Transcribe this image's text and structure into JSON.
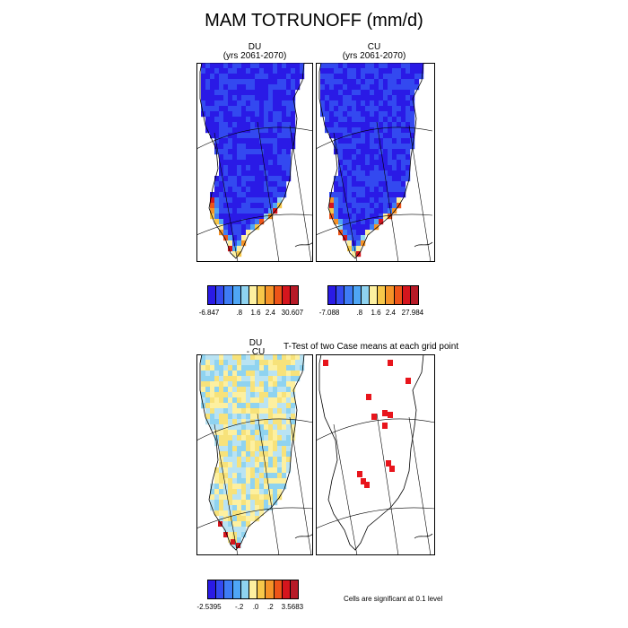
{
  "title": "MAM TOTRUNOFF (mm/d)",
  "panels": {
    "du": {
      "name": "DU",
      "years": "(yrs 2061-2070)"
    },
    "cu": {
      "name": "CU",
      "years": "(yrs 2061-2070)"
    },
    "diff": {
      "line1": "DU",
      "line2": "- CU"
    },
    "ttest": {
      "title": "T-Test of two Case means at each grid point"
    }
  },
  "colorbars": {
    "du": {
      "colors": [
        "#2a1ae6",
        "#3349f0",
        "#3e7cf5",
        "#4fa6f5",
        "#8fd3f0",
        "#fdf0a0",
        "#f7c84a",
        "#f59328",
        "#ee5418",
        "#d5151d",
        "#b71a27"
      ],
      "ticks": [
        "-6.847",
        ".8",
        "1.6",
        "2.4",
        "30.607"
      ]
    },
    "cu": {
      "colors": [
        "#2a1ae6",
        "#3349f0",
        "#3e7cf5",
        "#4fa6f5",
        "#8fd3f0",
        "#fdf0a0",
        "#f7c84a",
        "#f59328",
        "#ee5418",
        "#d5151d",
        "#b71a27"
      ],
      "ticks": [
        "-7.088",
        ".8",
        "1.6",
        "2.4",
        "27.984"
      ]
    },
    "diff": {
      "colors": [
        "#2a1ae6",
        "#3349f0",
        "#3e7cf5",
        "#4fa6f5",
        "#8fd3f0",
        "#fdf0a0",
        "#f7c84a",
        "#f59328",
        "#ee5418",
        "#d5151d",
        "#b71a27"
      ],
      "ticks": [
        "-2.5395",
        "-.2",
        ".0",
        ".2",
        "3.5683"
      ]
    }
  },
  "significance_note": "Cells are significant at 0.1 level"
}
